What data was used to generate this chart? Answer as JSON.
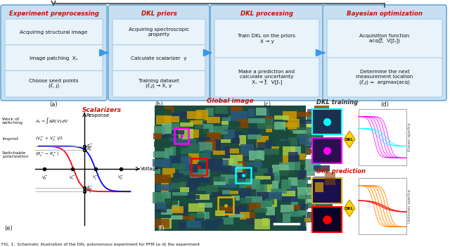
{
  "fig_width": 6.4,
  "fig_height": 3.51,
  "dpi": 100,
  "bg_color": "#ffffff",
  "panel_bg": "#C8DFF2",
  "panel_edge": "#6AAAD4",
  "item_bg": "#E8F3FB",
  "item_edge": "#A0C8E8",
  "title_red": "#CC1100",
  "arrow_blue": "#3399EE",
  "panel_labels": [
    "(a)",
    "(b)",
    "(c)",
    "(d)"
  ],
  "panel_a_title": "Experiment preprocessing",
  "panel_a_items": [
    "Acquiring structural image",
    "Image patching  Xₛ",
    "Choose seed points\n(ℓ, ȷ)"
  ],
  "panel_b_title": "DKL priors",
  "panel_b_items": [
    "Acquiring spectroscopic\nproperty",
    "Calculate scalarizer  y",
    "Training dataset\n(ℓ,ȷ) → X, y"
  ],
  "panel_c_title": "DKL processing",
  "panel_c_items": [
    "Train DKL on the priors\nX → y",
    "Make a prediction and\ncalculate uncertainty\nXₛ → ƒ̅,  V[ƒₛ]"
  ],
  "panel_d_title": "Bayesian optimization",
  "panel_d_items": [
    "Acquisition function\nacq(ƒ̅,  V[ƒₛ])",
    "Determine the next\nmeasurement location\n(ℓ,ȷ) =  argmax(acq)"
  ],
  "scalarizers_title": "Scalarizers",
  "global_image_title": "Global image",
  "dkl_training_title": "DKL training",
  "dkl_prediction_title": "DKL prediction"
}
